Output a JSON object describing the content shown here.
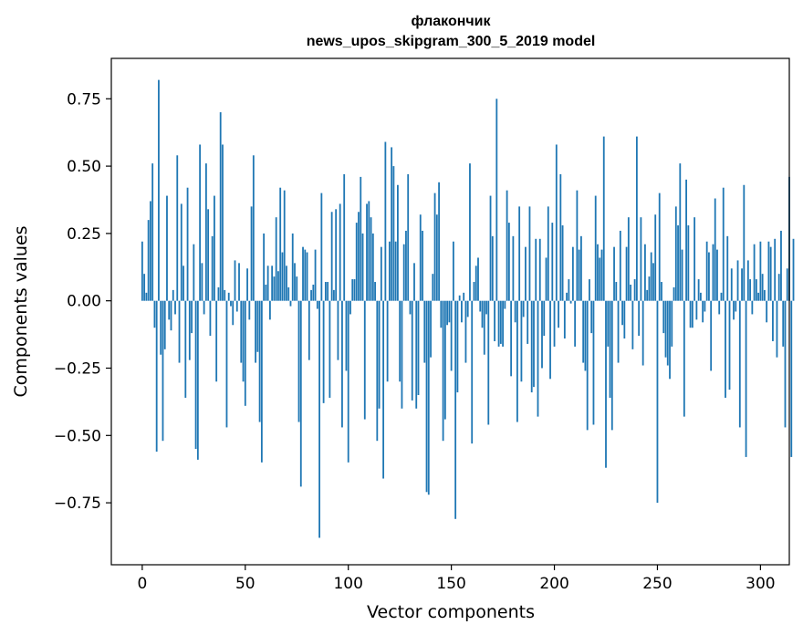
{
  "chart_data": {
    "type": "bar",
    "title_line1": "флакончик",
    "title_line2": "news_upos_skipgram_300_5_2019 model",
    "xlabel": "Vector components",
    "ylabel": "Components values",
    "xlim": [
      -15,
      314
    ],
    "ylim": [
      -0.98,
      0.9
    ],
    "xticks": [
      0,
      50,
      100,
      150,
      200,
      250,
      300
    ],
    "yticks": [
      -0.75,
      -0.5,
      -0.25,
      0.0,
      0.25,
      0.5,
      0.75
    ],
    "ytick_labels": [
      "−0.75",
      "−0.50",
      "−0.25",
      "0.00",
      "0.25",
      "0.50",
      "0.75"
    ],
    "bar_color": "#1f77b4",
    "values": [
      0.22,
      0.1,
      0.03,
      0.3,
      0.37,
      0.51,
      -0.1,
      -0.56,
      0.82,
      -0.2,
      -0.52,
      -0.18,
      0.39,
      -0.07,
      -0.11,
      0.04,
      -0.05,
      0.54,
      -0.23,
      0.36,
      0.13,
      -0.36,
      0.42,
      -0.22,
      -0.12,
      0.21,
      -0.55,
      -0.59,
      0.58,
      0.14,
      -0.05,
      0.51,
      0.34,
      -0.13,
      0.24,
      0.39,
      -0.3,
      0.05,
      0.7,
      0.58,
      0.04,
      -0.47,
      0.03,
      -0.02,
      -0.09,
      0.15,
      -0.04,
      0.14,
      -0.23,
      -0.3,
      -0.39,
      0.12,
      -0.07,
      0.35,
      0.54,
      -0.23,
      -0.19,
      -0.45,
      -0.6,
      0.25,
      0.06,
      0.13,
      -0.07,
      0.13,
      0.09,
      0.31,
      0.11,
      0.42,
      0.18,
      0.41,
      0.13,
      0.05,
      -0.02,
      0.25,
      0.14,
      0.09,
      -0.45,
      -0.69,
      0.2,
      0.19,
      0.18,
      -0.22,
      0.04,
      0.06,
      0.19,
      -0.03,
      -0.88,
      0.4,
      -0.38,
      0.07,
      0.07,
      -0.36,
      0.33,
      0.04,
      0.34,
      -0.22,
      0.36,
      -0.47,
      0.47,
      -0.26,
      -0.6,
      -0.05,
      0.08,
      0.08,
      0.29,
      0.33,
      0.46,
      0.25,
      -0.44,
      0.36,
      0.37,
      0.31,
      0.25,
      0.07,
      -0.52,
      -0.4,
      0.2,
      -0.66,
      0.59,
      -0.3,
      0.22,
      0.57,
      0.5,
      0.22,
      0.43,
      -0.3,
      -0.4,
      0.21,
      0.26,
      0.47,
      -0.05,
      -0.37,
      0.14,
      -0.4,
      -0.35,
      0.32,
      0.26,
      -0.23,
      -0.71,
      -0.72,
      -0.21,
      0.1,
      0.4,
      0.32,
      0.44,
      -0.1,
      -0.52,
      -0.44,
      -0.09,
      -0.08,
      -0.26,
      0.22,
      -0.81,
      -0.34,
      0.02,
      -0.08,
      0.03,
      -0.23,
      -0.06,
      0.51,
      -0.53,
      0.07,
      0.13,
      0.16,
      -0.04,
      -0.1,
      -0.2,
      -0.05,
      -0.46,
      0.39,
      0.24,
      -0.15,
      0.75,
      -0.17,
      -0.16,
      -0.17,
      -0.03,
      0.41,
      0.29,
      -0.28,
      0.24,
      -0.08,
      -0.45,
      0.35,
      -0.3,
      -0.06,
      0.2,
      -0.16,
      0.35,
      -0.34,
      -0.32,
      0.23,
      -0.43,
      0.23,
      -0.25,
      -0.13,
      0.16,
      0.35,
      -0.29,
      0.29,
      -0.17,
      0.58,
      -0.1,
      0.47,
      0.28,
      -0.14,
      0.03,
      0.08,
      -0.01,
      0.2,
      -0.17,
      0.41,
      0.19,
      0.24,
      -0.23,
      -0.26,
      -0.48,
      0.08,
      -0.12,
      -0.46,
      0.39,
      0.21,
      0.16,
      0.19,
      0.61,
      -0.62,
      -0.17,
      -0.36,
      -0.48,
      0.2,
      0.07,
      -0.23,
      0.26,
      -0.09,
      -0.14,
      0.2,
      0.31,
      0.06,
      -0.18,
      0.08,
      0.61,
      -0.13,
      0.31,
      -0.24,
      0.21,
      0.04,
      0.09,
      0.18,
      0.14,
      0.32,
      -0.75,
      0.4,
      0.07,
      -0.12,
      -0.21,
      -0.24,
      -0.29,
      -0.17,
      0.05,
      0.35,
      0.28,
      0.51,
      0.19,
      -0.43,
      0.45,
      0.28,
      -0.1,
      -0.1,
      0.31,
      -0.07,
      0.08,
      0.03,
      -0.08,
      -0.04,
      0.22,
      0.18,
      -0.26,
      0.21,
      0.38,
      0.19,
      -0.05,
      0.03,
      0.42,
      -0.36,
      0.24,
      -0.33,
      0.12,
      -0.07,
      -0.04,
      0.15,
      -0.47,
      0.12,
      0.43,
      -0.58,
      0.15,
      0.08,
      -0.05,
      0.21,
      0.08,
      0.03,
      0.22,
      0.1,
      0.04,
      -0.08,
      0.22,
      0.2,
      -0.15,
      0.23,
      -0.21,
      0.1,
      0.26,
      -0.17,
      -0.47,
      0.12,
      0.46,
      -0.58,
      0.23
    ]
  }
}
